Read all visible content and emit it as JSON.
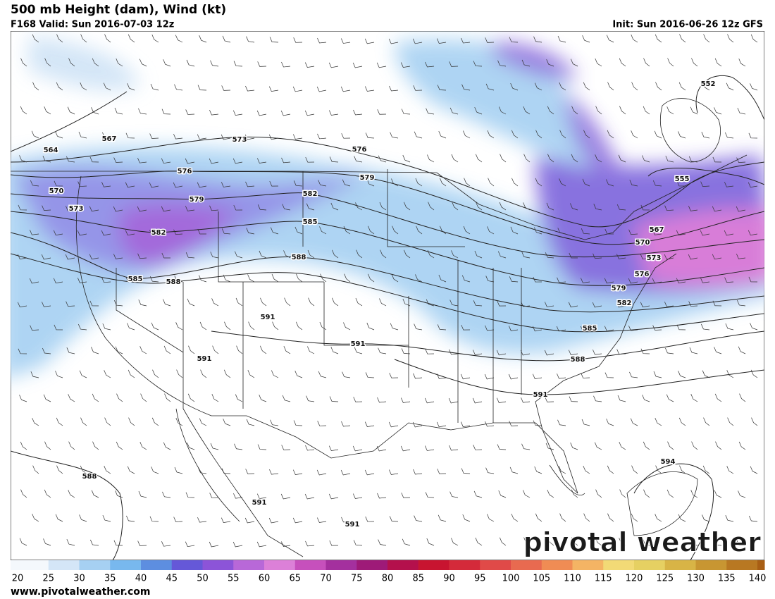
{
  "header": {
    "title": "500 mb Height (dam), Wind (kt)",
    "valid": "F168 Valid: Sun 2016-07-03 12z",
    "init": "Init: Sun 2016-06-26 12z GFS"
  },
  "contour_labels": [
    567,
    564,
    570,
    573,
    573,
    576,
    576,
    579,
    579,
    582,
    582,
    585,
    585,
    588,
    588,
    591,
    591,
    591,
    552,
    555,
    567,
    570,
    573,
    576,
    579,
    582,
    585,
    588,
    591,
    594,
    588,
    591,
    591
  ],
  "colorbar": {
    "ticks": [
      20,
      25,
      30,
      35,
      40,
      45,
      50,
      55,
      60,
      65,
      70,
      75,
      80,
      85,
      90,
      95,
      100,
      105,
      110,
      115,
      120,
      125,
      130,
      135,
      140
    ],
    "colors": [
      "#f4f8fc",
      "#d4e6f7",
      "#a6d0f2",
      "#78b8ee",
      "#5d8ee0",
      "#6558d8",
      "#8c54d8",
      "#b868d8",
      "#dc80d8",
      "#c650bc",
      "#a4309e",
      "#9e1a78",
      "#b4104c",
      "#c81430",
      "#d42a3a",
      "#e04a48",
      "#e86a50",
      "#f08c54",
      "#f4b464",
      "#f2da76",
      "#e6d062",
      "#d8b446",
      "#c89632",
      "#b87822",
      "#a85e14"
    ]
  },
  "watermark": "pivotal weather",
  "footer": "www.pivotalweather.com"
}
